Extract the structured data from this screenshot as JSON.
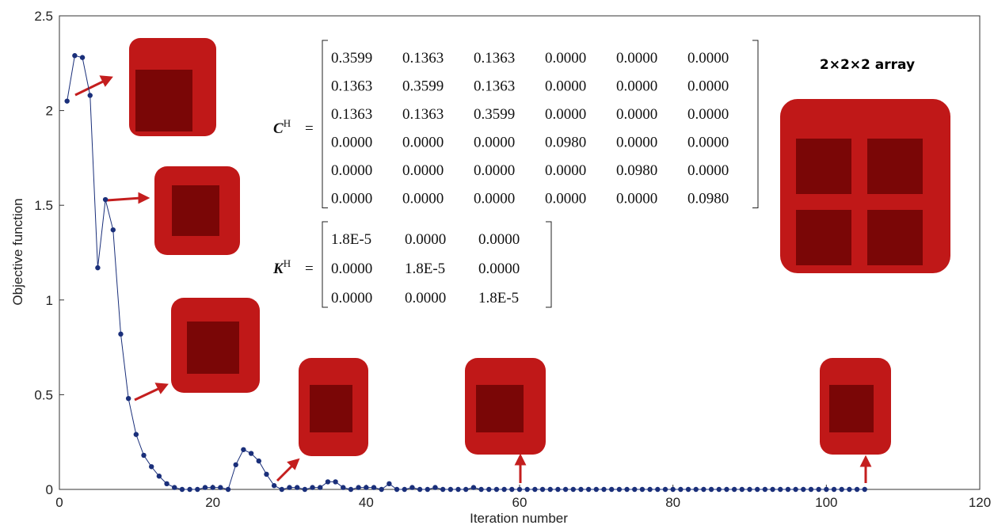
{
  "chart_data": {
    "type": "line",
    "x": [
      1,
      2,
      3,
      4,
      5,
      6,
      7,
      8,
      9,
      10,
      11,
      12,
      13,
      14,
      15,
      16,
      17,
      18,
      19,
      20,
      21,
      22,
      23,
      24,
      25,
      26,
      27,
      28,
      29,
      30,
      31,
      32,
      33,
      34,
      35,
      36,
      37,
      38,
      39,
      40,
      41,
      42,
      43,
      44,
      45,
      46,
      47,
      48,
      49,
      50,
      51,
      52,
      53,
      54,
      55,
      56,
      57,
      58,
      59,
      60,
      61,
      62,
      63,
      64,
      65,
      66,
      67,
      68,
      69,
      70,
      71,
      72,
      73,
      74,
      75,
      76,
      77,
      78,
      79,
      80,
      81,
      82,
      83,
      84,
      85,
      86,
      87,
      88,
      89,
      90,
      91,
      92,
      93,
      94,
      95,
      96,
      97,
      98,
      99,
      100,
      101,
      102,
      103,
      104,
      105
    ],
    "series": [
      {
        "color": "#1a2f7a",
        "values": [
          2.05,
          2.29,
          2.28,
          2.08,
          1.17,
          1.53,
          1.37,
          0.82,
          0.48,
          0.29,
          0.18,
          0.12,
          0.07,
          0.03,
          0.01,
          0,
          0,
          0,
          0.01,
          0.01,
          0.01,
          0,
          0.13,
          0.21,
          0.19,
          0.15,
          0.08,
          0.02,
          0,
          0.01,
          0.01,
          0,
          0.01,
          0.01,
          0.04,
          0.04,
          0.01,
          0,
          0.01,
          0.01,
          0.01,
          0,
          0.03,
          0,
          0,
          0.01,
          0,
          0,
          0.01,
          0,
          0,
          0,
          0,
          0.01,
          0,
          0,
          0,
          0,
          0,
          0,
          0,
          0,
          0,
          0,
          0,
          0,
          0,
          0,
          0,
          0,
          0,
          0,
          0,
          0,
          0,
          0,
          0,
          0,
          0,
          0,
          0,
          0,
          0,
          0,
          0,
          0,
          0,
          0,
          0,
          0,
          0,
          0,
          0,
          0,
          0,
          0,
          0,
          0,
          0,
          0,
          0,
          0,
          0,
          0,
          0
        ]
      }
    ],
    "xlim": [
      0,
      120
    ],
    "xticks": [
      0,
      20,
      40,
      60,
      80,
      100,
      120
    ],
    "ylim": [
      0,
      2.5
    ],
    "yticks": [
      0,
      0.5,
      1,
      1.5,
      2,
      2.5
    ],
    "xlabel": "Iteration number",
    "ylabel": "Objective function",
    "array_label": "2×2×2 array",
    "matrices": [
      {
        "name": "C",
        "superscript": "H",
        "rows": [
          [
            "0.3599",
            "0.1363",
            "0.1363",
            "0.0000",
            "0.0000",
            "0.0000"
          ],
          [
            "0.1363",
            "0.3599",
            "0.1363",
            "0.0000",
            "0.0000",
            "0.0000"
          ],
          [
            "0.1363",
            "0.1363",
            "0.3599",
            "0.0000",
            "0.0000",
            "0.0000"
          ],
          [
            "0.0000",
            "0.0000",
            "0.0000",
            "0.0980",
            "0.0000",
            "0.0000"
          ],
          [
            "0.0000",
            "0.0000",
            "0.0000",
            "0.0000",
            "0.0980",
            "0.0000"
          ],
          [
            "0.0000",
            "0.0000",
            "0.0000",
            "0.0000",
            "0.0000",
            "0.0980"
          ]
        ]
      },
      {
        "name": "K",
        "superscript": "H",
        "rows": [
          [
            "1.8E-5",
            "0.0000",
            "0.0000"
          ],
          [
            "0.0000",
            "1.8E-5",
            "0.0000"
          ],
          [
            "0.0000",
            "0.0000",
            "1.8E-5"
          ]
        ]
      }
    ]
  }
}
